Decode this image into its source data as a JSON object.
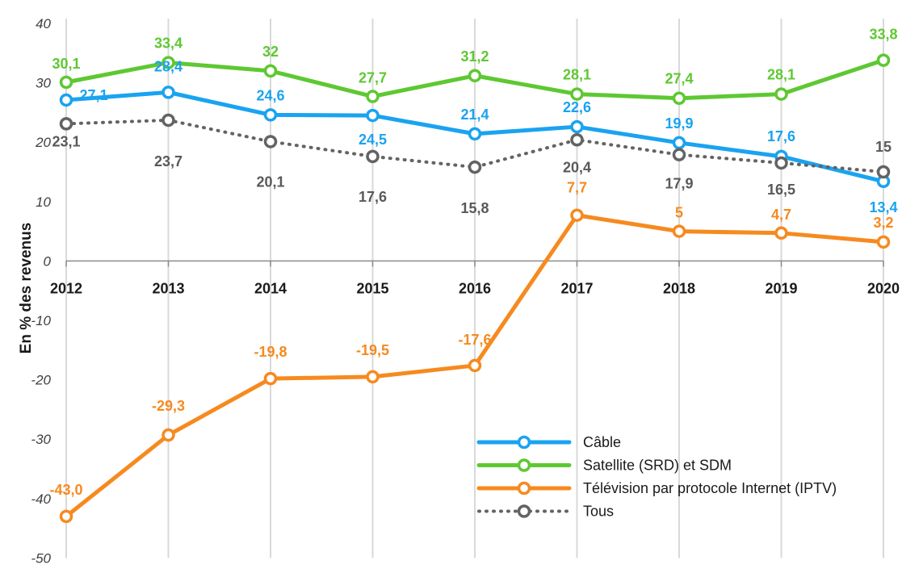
{
  "chart_data": {
    "type": "line",
    "ylabel": "En % des revenus",
    "xlabel": "",
    "ylim": [
      -50,
      40
    ],
    "yticks": [
      "40",
      "30",
      "20",
      "10",
      "0",
      "-10",
      "-20",
      "-30",
      "-40",
      "-50"
    ],
    "ytick_values": [
      40,
      30,
      20,
      10,
      0,
      -10,
      -20,
      -30,
      -40,
      -50
    ],
    "categories": [
      "2012",
      "2013",
      "2014",
      "2015",
      "2016",
      "2017",
      "2018",
      "2019",
      "2020"
    ],
    "grid": "vertical",
    "legend_position": "bottom-right",
    "series": [
      {
        "name": "Câble",
        "color": "#1aa3f0",
        "style": "solid",
        "values": [
          27.1,
          28.4,
          24.6,
          24.5,
          21.4,
          22.6,
          19.9,
          17.6,
          13.4
        ],
        "labels": [
          "27,1",
          "28,4",
          "24,6",
          "24,5",
          "21,4",
          "22,6",
          "19,9",
          "17,6",
          "13,4"
        ]
      },
      {
        "name": "Satellite (SRD) et SDM",
        "color": "#5ec832",
        "style": "solid",
        "values": [
          30.1,
          33.4,
          32,
          27.7,
          31.2,
          28.1,
          27.4,
          28.1,
          33.8
        ],
        "labels": [
          "30,1",
          "33,4",
          "32",
          "27,7",
          "31,2",
          "28,1",
          "27,4",
          "28,1",
          "33,8"
        ]
      },
      {
        "name": "Télévision par protocole Internet (IPTV)",
        "color": "#f68a1f",
        "style": "solid",
        "values": [
          -43.0,
          -29.3,
          -19.8,
          -19.5,
          -17.6,
          7.7,
          5,
          4.7,
          3.2
        ],
        "labels": [
          "-43,0",
          "-29,3",
          "-19,8",
          "-19,5",
          "-17,6",
          "7,7",
          "5",
          "4,7",
          "3,2"
        ]
      },
      {
        "name": "Tous",
        "color": "#636363",
        "style": "dotted",
        "values": [
          23.1,
          23.7,
          20.1,
          17.6,
          15.8,
          20.4,
          17.9,
          16.5,
          15
        ],
        "labels": [
          "23,1",
          "23,7",
          "20,1",
          "17,6",
          "15,8",
          "20,4",
          "17,9",
          "16,5",
          "15"
        ]
      }
    ]
  }
}
